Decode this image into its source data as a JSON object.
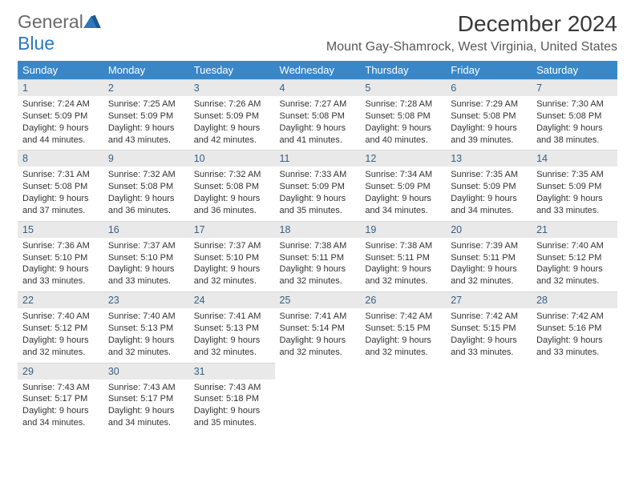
{
  "branding": {
    "word1": "General",
    "word2": "Blue"
  },
  "title": "December 2024",
  "location": "Mount Gay-Shamrock, West Virginia, United States",
  "colors": {
    "header_bg": "#3a87c8",
    "header_fg": "#ffffff",
    "daynum_bg": "#e9e9e9",
    "daynum_fg": "#355f84",
    "body_fg": "#333333",
    "logo_gray": "#6a6a6a",
    "logo_blue": "#2e78bb"
  },
  "day_headers": [
    "Sunday",
    "Monday",
    "Tuesday",
    "Wednesday",
    "Thursday",
    "Friday",
    "Saturday"
  ],
  "weeks": [
    [
      {
        "n": "1",
        "sunrise": "Sunrise: 7:24 AM",
        "sunset": "Sunset: 5:09 PM",
        "daylight": "Daylight: 9 hours and 44 minutes."
      },
      {
        "n": "2",
        "sunrise": "Sunrise: 7:25 AM",
        "sunset": "Sunset: 5:09 PM",
        "daylight": "Daylight: 9 hours and 43 minutes."
      },
      {
        "n": "3",
        "sunrise": "Sunrise: 7:26 AM",
        "sunset": "Sunset: 5:09 PM",
        "daylight": "Daylight: 9 hours and 42 minutes."
      },
      {
        "n": "4",
        "sunrise": "Sunrise: 7:27 AM",
        "sunset": "Sunset: 5:08 PM",
        "daylight": "Daylight: 9 hours and 41 minutes."
      },
      {
        "n": "5",
        "sunrise": "Sunrise: 7:28 AM",
        "sunset": "Sunset: 5:08 PM",
        "daylight": "Daylight: 9 hours and 40 minutes."
      },
      {
        "n": "6",
        "sunrise": "Sunrise: 7:29 AM",
        "sunset": "Sunset: 5:08 PM",
        "daylight": "Daylight: 9 hours and 39 minutes."
      },
      {
        "n": "7",
        "sunrise": "Sunrise: 7:30 AM",
        "sunset": "Sunset: 5:08 PM",
        "daylight": "Daylight: 9 hours and 38 minutes."
      }
    ],
    [
      {
        "n": "8",
        "sunrise": "Sunrise: 7:31 AM",
        "sunset": "Sunset: 5:08 PM",
        "daylight": "Daylight: 9 hours and 37 minutes."
      },
      {
        "n": "9",
        "sunrise": "Sunrise: 7:32 AM",
        "sunset": "Sunset: 5:08 PM",
        "daylight": "Daylight: 9 hours and 36 minutes."
      },
      {
        "n": "10",
        "sunrise": "Sunrise: 7:32 AM",
        "sunset": "Sunset: 5:08 PM",
        "daylight": "Daylight: 9 hours and 36 minutes."
      },
      {
        "n": "11",
        "sunrise": "Sunrise: 7:33 AM",
        "sunset": "Sunset: 5:09 PM",
        "daylight": "Daylight: 9 hours and 35 minutes."
      },
      {
        "n": "12",
        "sunrise": "Sunrise: 7:34 AM",
        "sunset": "Sunset: 5:09 PM",
        "daylight": "Daylight: 9 hours and 34 minutes."
      },
      {
        "n": "13",
        "sunrise": "Sunrise: 7:35 AM",
        "sunset": "Sunset: 5:09 PM",
        "daylight": "Daylight: 9 hours and 34 minutes."
      },
      {
        "n": "14",
        "sunrise": "Sunrise: 7:35 AM",
        "sunset": "Sunset: 5:09 PM",
        "daylight": "Daylight: 9 hours and 33 minutes."
      }
    ],
    [
      {
        "n": "15",
        "sunrise": "Sunrise: 7:36 AM",
        "sunset": "Sunset: 5:10 PM",
        "daylight": "Daylight: 9 hours and 33 minutes."
      },
      {
        "n": "16",
        "sunrise": "Sunrise: 7:37 AM",
        "sunset": "Sunset: 5:10 PM",
        "daylight": "Daylight: 9 hours and 33 minutes."
      },
      {
        "n": "17",
        "sunrise": "Sunrise: 7:37 AM",
        "sunset": "Sunset: 5:10 PM",
        "daylight": "Daylight: 9 hours and 32 minutes."
      },
      {
        "n": "18",
        "sunrise": "Sunrise: 7:38 AM",
        "sunset": "Sunset: 5:11 PM",
        "daylight": "Daylight: 9 hours and 32 minutes."
      },
      {
        "n": "19",
        "sunrise": "Sunrise: 7:38 AM",
        "sunset": "Sunset: 5:11 PM",
        "daylight": "Daylight: 9 hours and 32 minutes."
      },
      {
        "n": "20",
        "sunrise": "Sunrise: 7:39 AM",
        "sunset": "Sunset: 5:11 PM",
        "daylight": "Daylight: 9 hours and 32 minutes."
      },
      {
        "n": "21",
        "sunrise": "Sunrise: 7:40 AM",
        "sunset": "Sunset: 5:12 PM",
        "daylight": "Daylight: 9 hours and 32 minutes."
      }
    ],
    [
      {
        "n": "22",
        "sunrise": "Sunrise: 7:40 AM",
        "sunset": "Sunset: 5:12 PM",
        "daylight": "Daylight: 9 hours and 32 minutes."
      },
      {
        "n": "23",
        "sunrise": "Sunrise: 7:40 AM",
        "sunset": "Sunset: 5:13 PM",
        "daylight": "Daylight: 9 hours and 32 minutes."
      },
      {
        "n": "24",
        "sunrise": "Sunrise: 7:41 AM",
        "sunset": "Sunset: 5:13 PM",
        "daylight": "Daylight: 9 hours and 32 minutes."
      },
      {
        "n": "25",
        "sunrise": "Sunrise: 7:41 AM",
        "sunset": "Sunset: 5:14 PM",
        "daylight": "Daylight: 9 hours and 32 minutes."
      },
      {
        "n": "26",
        "sunrise": "Sunrise: 7:42 AM",
        "sunset": "Sunset: 5:15 PM",
        "daylight": "Daylight: 9 hours and 32 minutes."
      },
      {
        "n": "27",
        "sunrise": "Sunrise: 7:42 AM",
        "sunset": "Sunset: 5:15 PM",
        "daylight": "Daylight: 9 hours and 33 minutes."
      },
      {
        "n": "28",
        "sunrise": "Sunrise: 7:42 AM",
        "sunset": "Sunset: 5:16 PM",
        "daylight": "Daylight: 9 hours and 33 minutes."
      }
    ],
    [
      {
        "n": "29",
        "sunrise": "Sunrise: 7:43 AM",
        "sunset": "Sunset: 5:17 PM",
        "daylight": "Daylight: 9 hours and 34 minutes."
      },
      {
        "n": "30",
        "sunrise": "Sunrise: 7:43 AM",
        "sunset": "Sunset: 5:17 PM",
        "daylight": "Daylight: 9 hours and 34 minutes."
      },
      {
        "n": "31",
        "sunrise": "Sunrise: 7:43 AM",
        "sunset": "Sunset: 5:18 PM",
        "daylight": "Daylight: 9 hours and 35 minutes."
      },
      null,
      null,
      null,
      null
    ]
  ]
}
